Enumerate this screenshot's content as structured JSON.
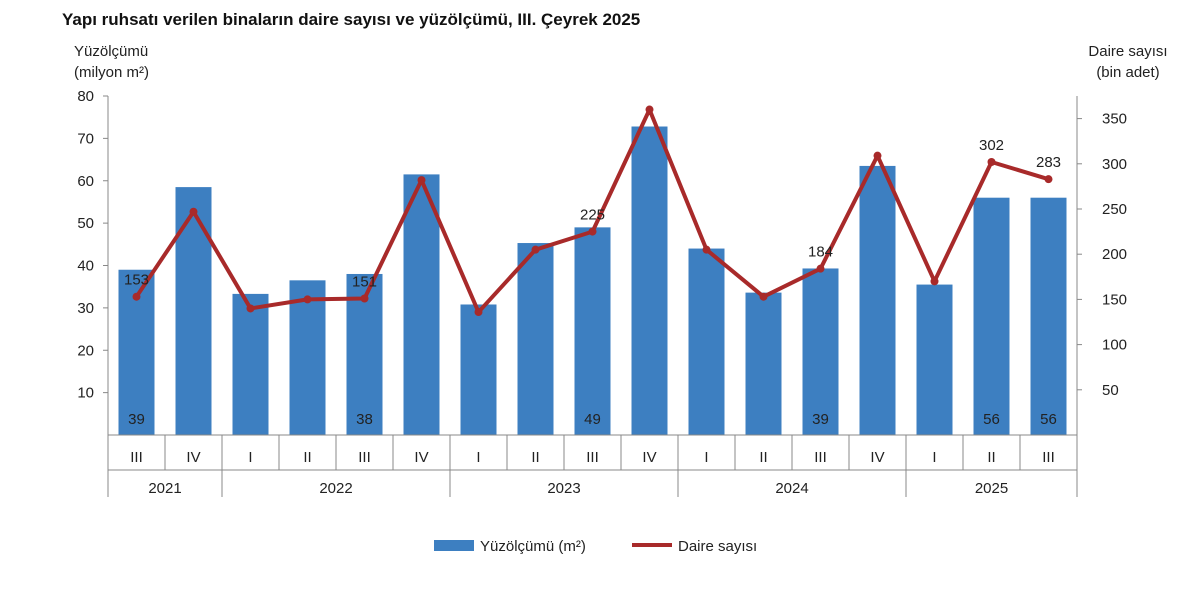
{
  "chart_data": {
    "type": "bar+line",
    "title": "Yapı ruhsatı verilen binaların daire sayısı ve yüzölçümü, III. Çeyrek 2025",
    "y_left_label": [
      "Yüzölçümü",
      "(milyon m²)"
    ],
    "y_right_label": [
      "Daire sayısı",
      "(bin adet)"
    ],
    "y_left_ticks": [
      "10",
      "20",
      "30",
      "40",
      "50",
      "60",
      "70",
      "80"
    ],
    "y_right_ticks": [
      "50",
      "100",
      "150",
      "200",
      "250",
      "300",
      "350"
    ],
    "ylim_left": [
      0,
      80
    ],
    "ylim_right": [
      0,
      375
    ],
    "categories": [
      "III",
      "IV",
      "I",
      "II",
      "III",
      "IV",
      "I",
      "II",
      "III",
      "IV",
      "I",
      "II",
      "III",
      "IV",
      "I",
      "II",
      "III"
    ],
    "years": [
      {
        "label": "2021",
        "count": 2
      },
      {
        "label": "2022",
        "count": 4
      },
      {
        "label": "2023",
        "count": 4
      },
      {
        "label": "2024",
        "count": 4
      },
      {
        "label": "2025",
        "count": 3
      }
    ],
    "series": [
      {
        "name": "Yüzölçümü (m²)",
        "type": "bar",
        "axis": "left",
        "color": "#3d7fc1",
        "values": [
          39,
          58.5,
          33.3,
          36.5,
          38,
          61.5,
          30.8,
          45.3,
          49,
          72.8,
          44,
          33.6,
          39.3,
          63.5,
          35.5,
          56,
          56
        ],
        "labels": [
          "39",
          "",
          "",
          "",
          "38",
          "",
          "",
          "",
          "49",
          "",
          "",
          "",
          "39",
          "",
          "",
          "56",
          "56"
        ]
      },
      {
        "name": "Daire sayısı",
        "type": "line",
        "axis": "right",
        "color": "#a82a2a",
        "values": [
          153,
          247,
          140,
          150,
          151,
          282,
          136,
          205,
          225,
          360,
          205,
          153,
          184,
          309,
          170,
          302,
          283
        ],
        "labels": [
          "153",
          "",
          "",
          "",
          "151",
          "",
          "",
          "",
          "225",
          "",
          "",
          "",
          "184",
          "",
          "",
          "302",
          "283"
        ]
      }
    ],
    "legend_position": "bottom"
  }
}
